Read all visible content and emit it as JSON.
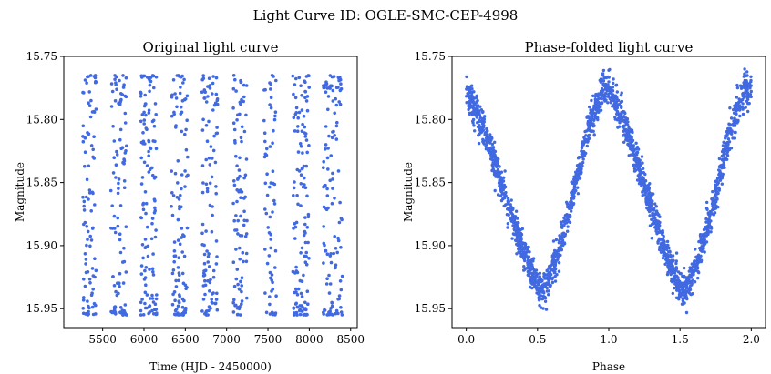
{
  "figure": {
    "suptitle": "Light Curve ID: OGLE-SMC-CEP-4998",
    "marker_color": "#4169e1",
    "background": "#ffffff"
  },
  "chart_data": [
    {
      "type": "scatter",
      "title": "Original light curve",
      "xlabel": "Time (HJD - 2450000)",
      "ylabel": "Magnitude",
      "xlim": [
        5030,
        8580
      ],
      "ylim": [
        15.75,
        15.965
      ],
      "y_inverted": true,
      "grid": false,
      "legend": "none",
      "xticks": [
        5500,
        6000,
        6500,
        7000,
        7500,
        8000,
        8500
      ],
      "xtick_labels": [
        "5500",
        "6000",
        "6500",
        "7000",
        "7500",
        "8000",
        "8500"
      ],
      "yticks": [
        15.75,
        15.8,
        15.85,
        15.9,
        15.95
      ],
      "ytick_labels": [
        "15.75",
        "15.80",
        "15.85",
        "15.90",
        "15.95"
      ],
      "magnitude_range": [
        15.765,
        15.955
      ],
      "observing_seasons": [
        {
          "x_start": 5260,
          "x_end": 5420,
          "points": 95
        },
        {
          "x_start": 5600,
          "x_end": 5790,
          "points": 105
        },
        {
          "x_start": 5960,
          "x_end": 6160,
          "points": 130
        },
        {
          "x_start": 6330,
          "x_end": 6530,
          "points": 115
        },
        {
          "x_start": 6700,
          "x_end": 6890,
          "points": 105
        },
        {
          "x_start": 7080,
          "x_end": 7250,
          "points": 100
        },
        {
          "x_start": 7450,
          "x_end": 7600,
          "points": 70
        },
        {
          "x_start": 7800,
          "x_end": 8000,
          "points": 130
        },
        {
          "x_start": 8170,
          "x_end": 8400,
          "points": 125
        }
      ]
    },
    {
      "type": "scatter",
      "title": "Phase-folded light curve",
      "xlabel": "Phase",
      "ylabel": "Magnitude",
      "xlim": [
        -0.1,
        2.1
      ],
      "ylim": [
        15.75,
        15.965
      ],
      "y_inverted": true,
      "grid": false,
      "legend": "none",
      "xticks": [
        0.0,
        0.5,
        1.0,
        1.5,
        2.0
      ],
      "xtick_labels": [
        "0.0",
        "0.5",
        "1.0",
        "1.5",
        "2.0"
      ],
      "yticks": [
        15.75,
        15.8,
        15.85,
        15.9,
        15.95
      ],
      "ytick_labels": [
        "15.75",
        "15.80",
        "15.85",
        "15.90",
        "15.95"
      ],
      "phase_range": [
        0.0,
        2.0
      ],
      "points": 2150,
      "light_curve_profile": [
        {
          "phase": 0.0,
          "magnitude": 15.775
        },
        {
          "phase": 0.1,
          "magnitude": 15.8
        },
        {
          "phase": 0.2,
          "magnitude": 15.835
        },
        {
          "phase": 0.3,
          "magnitude": 15.87
        },
        {
          "phase": 0.4,
          "magnitude": 15.905
        },
        {
          "phase": 0.5,
          "magnitude": 15.932
        },
        {
          "phase": 0.55,
          "magnitude": 15.935
        },
        {
          "phase": 0.65,
          "magnitude": 15.905
        },
        {
          "phase": 0.75,
          "magnitude": 15.86
        },
        {
          "phase": 0.85,
          "magnitude": 15.81
        },
        {
          "phase": 0.95,
          "magnitude": 15.778
        },
        {
          "phase": 1.0,
          "magnitude": 15.775
        }
      ],
      "scatter_width_mag": 0.012
    }
  ]
}
